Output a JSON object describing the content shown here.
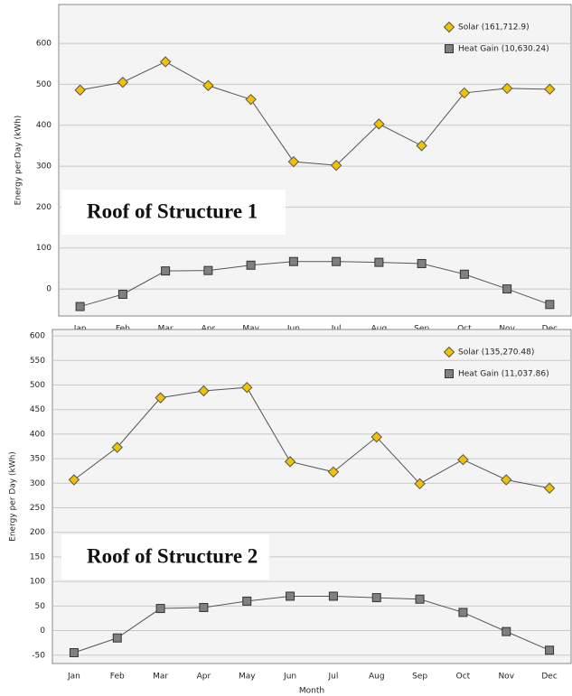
{
  "chart_data": [
    {
      "type": "line",
      "annotation": "Roof of Structure 1",
      "y_label": "Energy per Day (kWh)",
      "categories": [
        "Jan",
        "Feb",
        "Mar",
        "Apr",
        "May",
        "Jun",
        "Jul",
        "Aug",
        "Sep",
        "Oct",
        "Nov",
        "Dec"
      ],
      "series": [
        {
          "name": "Solar (161,712.9)",
          "color": "#f2c200",
          "marker": "diamond",
          "values": [
            486,
            505,
            555,
            497,
            463,
            311,
            302,
            403,
            350,
            479,
            490,
            488
          ]
        },
        {
          "name": "Heat Gain (10,630.24)",
          "color": "#808080",
          "marker": "square",
          "values": [
            -43,
            -13,
            44,
            45,
            58,
            67,
            67,
            65,
            62,
            36,
            0,
            -38
          ]
        }
      ],
      "ylim": [
        -66,
        695
      ],
      "yticks": [
        0,
        100,
        200,
        300,
        400,
        500,
        600
      ],
      "grid": true
    },
    {
      "type": "line",
      "annotation": "Roof of Structure 2",
      "y_label": "Energy per Day (kWh)",
      "x_label": "Month",
      "categories": [
        "Jan",
        "Feb",
        "Mar",
        "Apr",
        "May",
        "Jun",
        "Jul",
        "Aug",
        "Sep",
        "Oct",
        "Nov",
        "Dec"
      ],
      "series": [
        {
          "name": "Solar (135,270.48)",
          "color": "#f2c200",
          "marker": "diamond",
          "values": [
            307,
            373,
            474,
            488,
            495,
            344,
            323,
            394,
            299,
            348,
            307,
            290
          ]
        },
        {
          "name": "Heat Gain (11,037.86)",
          "color": "#808080",
          "marker": "square",
          "values": [
            -45,
            -15,
            45,
            47,
            60,
            70,
            70,
            67,
            64,
            37,
            -2,
            -40
          ]
        }
      ],
      "ylim": [
        -67,
        613
      ],
      "yticks": [
        -50,
        0,
        50,
        100,
        150,
        200,
        250,
        300,
        350,
        400,
        450,
        500,
        550,
        600
      ],
      "grid": true
    }
  ]
}
